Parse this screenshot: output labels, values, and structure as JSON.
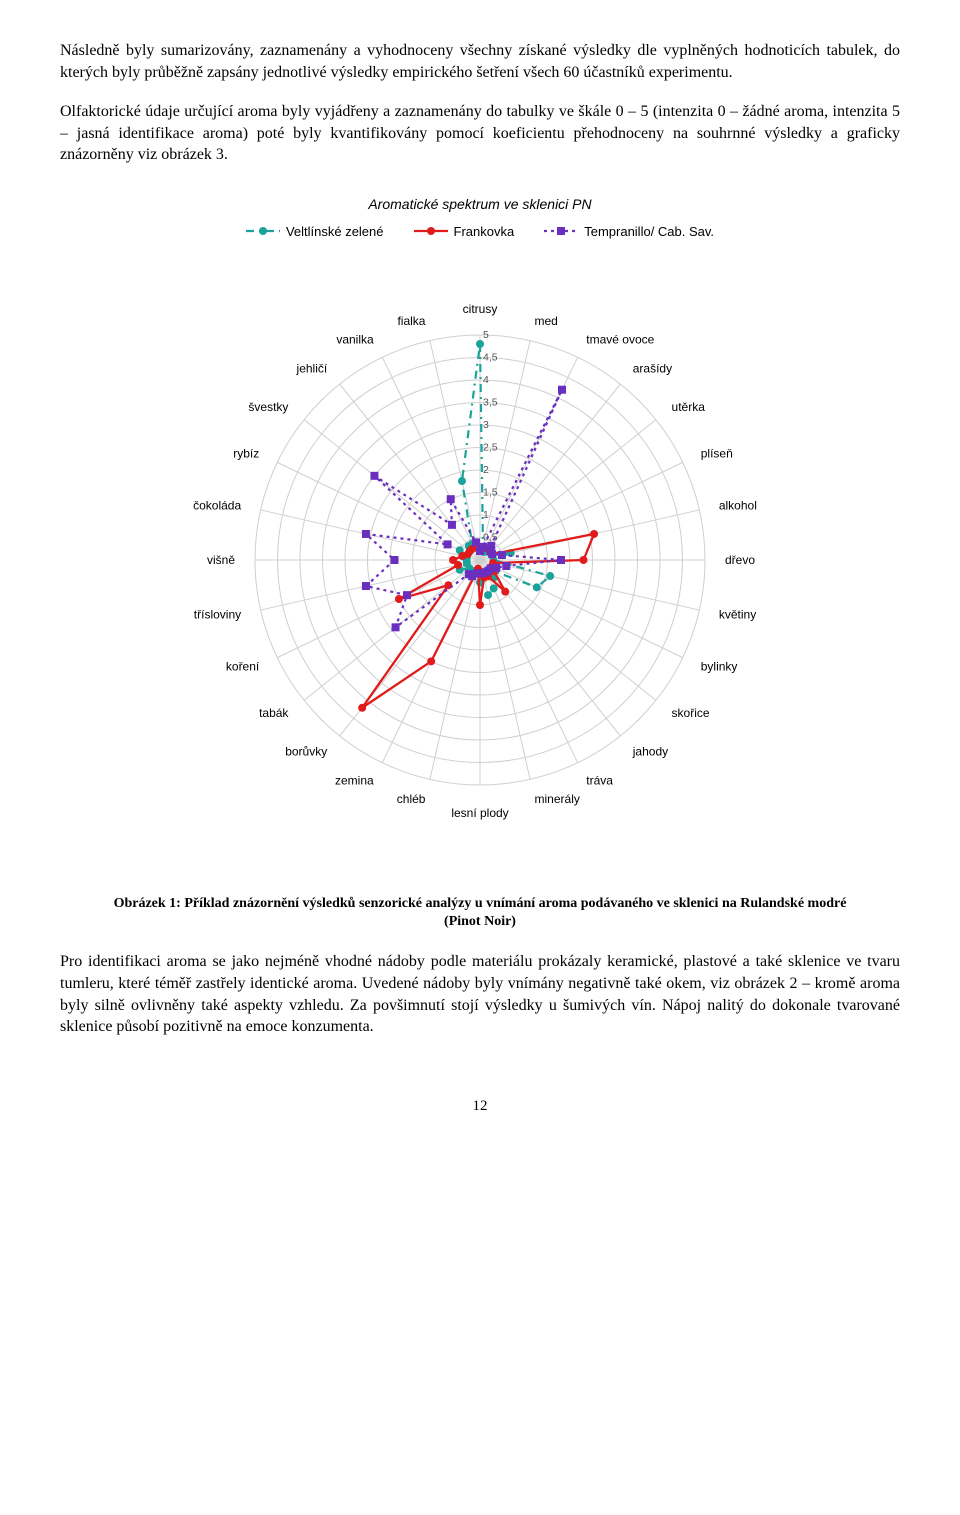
{
  "paragraphs": {
    "p1": "Následně byly sumarizovány, zaznamenány a vyhodnoceny všechny získané výsledky dle vyplněných hodnoticích tabulek, do kterých byly průběžně zapsány jednotlivé výsledky empirického šetření všech 60 účastníků experimentu.",
    "p2": "Olfaktorické údaje určující aroma byly vyjádřeny a zaznamenány do tabulky ve škále 0 – 5 (intenzita 0 – žádné aroma, intenzita 5 – jasná identifikace aroma) poté byly kvantifikovány pomocí koeficientu přehodnoceny na souhrnné výsledky a graficky znázorněny viz obrázek 3.",
    "p3": "Pro identifikaci aroma se jako nejméně vhodné nádoby podle materiálu prokázaly keramické, plastové a také sklenice ve tvaru tumleru, které téměř zastřely identické aroma. Uvedené nádoby byly vnímány negativně také okem, viz obrázek 2 – kromě aroma byly silně ovlivněny také aspekty vzhledu. Za povšimnutí stojí výsledky u šumivých vín. Nápoj nalitý do dokonale tvarované sklenice působí pozitivně na emoce konzumenta."
  },
  "caption_bold": "Obrázek 1: Příklad znázornění výsledků senzorické analýzy u vnímání aroma podávaného ve sklenici na Rulandské modré (Pinot Noir)",
  "page_number": "12",
  "chart": {
    "type": "radar",
    "title": "Aromatické spektrum ve sklenici PN",
    "max": 5,
    "tick_step": 0.5,
    "ring_color": "#cfcfcf",
    "background_color": "#ffffff",
    "title_fontsize": 14,
    "label_fontsize": 12,
    "tick_fontsize": 10.5,
    "categories": [
      "citrusy",
      "med",
      "tmavé ovoce",
      "arašídy",
      "utěrka",
      "plíseň",
      "alkohol",
      "dřevo",
      "květiny",
      "bylinky",
      "skořice",
      "jahody",
      "tráva",
      "minerály",
      "lesní plody",
      "chléb",
      "zemina",
      "borůvky",
      "tabák",
      "koření",
      "třísloviny",
      "višně",
      "čokoláda",
      "rybíz",
      "švestky",
      "jehličí",
      "vanilka",
      "fialka"
    ],
    "series": [
      {
        "name": "Veltlínské zelené",
        "color": "#1aa39b",
        "dash": "8 5 2 5",
        "marker": "circle",
        "marker_size": 4,
        "line_width": 2.2,
        "values": [
          4.8,
          0.3,
          0.2,
          0.3,
          0.3,
          0.3,
          0.7,
          0.3,
          1.6,
          1.4,
          0.4,
          0.5,
          0.7,
          0.8,
          0.5,
          0.3,
          0.3,
          0.3,
          0.3,
          0.5,
          0.3,
          0.3,
          0.3,
          0.5,
          0.3,
          0.4,
          0.4,
          1.8
        ]
      },
      {
        "name": "Frankovka",
        "color": "#e11b1b",
        "dash": "",
        "marker": "circle",
        "marker_size": 4,
        "line_width": 2.3,
        "values": [
          0.2,
          0.3,
          0.3,
          0.3,
          0.3,
          0.3,
          2.6,
          2.3,
          0.3,
          0.3,
          0.4,
          0.9,
          0.4,
          0.4,
          1.0,
          0.2,
          2.5,
          4.2,
          0.9,
          2.0,
          0.5,
          0.6,
          0.4,
          0.3,
          0.3,
          0.3,
          0.3,
          0.3
        ]
      },
      {
        "name": "Tempranillo/ Cab. Sav.",
        "color": "#6b2fbf",
        "dash": "3 4",
        "marker": "square",
        "marker_size": 4,
        "line_width": 2.2,
        "values": [
          0.2,
          0.3,
          4.2,
          0.4,
          0.3,
          0.3,
          0.5,
          1.8,
          0.6,
          0.4,
          0.3,
          0.3,
          0.3,
          0.3,
          0.3,
          0.3,
          0.4,
          0.4,
          2.4,
          1.8,
          2.6,
          1.9,
          2.6,
          0.8,
          3.0,
          1.0,
          1.5,
          0.4
        ]
      }
    ]
  }
}
